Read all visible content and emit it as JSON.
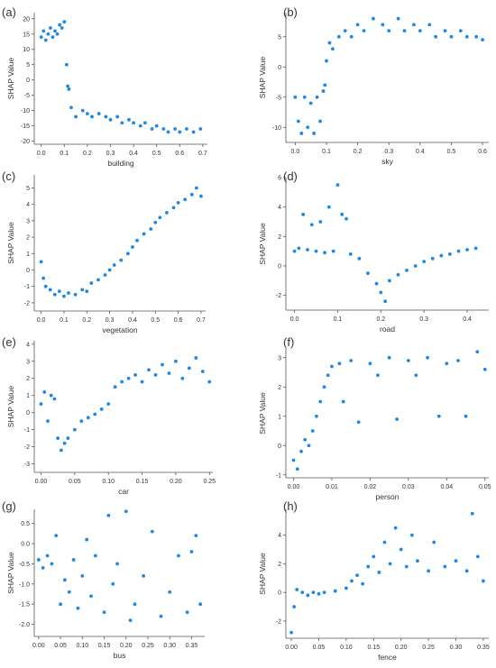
{
  "colors": {
    "point": "#1e88e5",
    "axis": "#555555",
    "text": "#333333"
  },
  "chart_data": [
    {
      "panel": "(a)",
      "type": "scatter",
      "xlabel": "building",
      "ylabel": "SHAP Value",
      "xlim": [
        -0.03,
        0.72
      ],
      "ylim": [
        -21,
        22
      ],
      "xticks": [
        0.0,
        0.1,
        0.2,
        0.3,
        0.4,
        0.5,
        0.6,
        0.7
      ],
      "xtick_labels": [
        "0.0",
        "0.1",
        "0.2",
        "0.3",
        "0.4",
        "0.5",
        "0.6",
        "0.7"
      ],
      "yticks": [
        -20,
        -15,
        -10,
        -5,
        0,
        5,
        10,
        15,
        20
      ],
      "ytick_labels": [
        "-20",
        "-15",
        "-10",
        "-5",
        "0",
        "5",
        "10",
        "15",
        "20"
      ],
      "points": [
        [
          0.0,
          14
        ],
        [
          0.01,
          16
        ],
        [
          0.02,
          13
        ],
        [
          0.03,
          15
        ],
        [
          0.04,
          17
        ],
        [
          0.05,
          14
        ],
        [
          0.06,
          16
        ],
        [
          0.07,
          15
        ],
        [
          0.08,
          18
        ],
        [
          0.09,
          17
        ],
        [
          0.1,
          19
        ],
        [
          0.11,
          5
        ],
        [
          0.115,
          -2
        ],
        [
          0.12,
          -3
        ],
        [
          0.13,
          -9
        ],
        [
          0.15,
          -12
        ],
        [
          0.18,
          -10
        ],
        [
          0.2,
          -11
        ],
        [
          0.22,
          -12
        ],
        [
          0.25,
          -11
        ],
        [
          0.28,
          -12
        ],
        [
          0.3,
          -13
        ],
        [
          0.33,
          -12
        ],
        [
          0.35,
          -14
        ],
        [
          0.38,
          -13
        ],
        [
          0.4,
          -14
        ],
        [
          0.43,
          -15
        ],
        [
          0.45,
          -14
        ],
        [
          0.48,
          -16
        ],
        [
          0.5,
          -15
        ],
        [
          0.53,
          -16
        ],
        [
          0.55,
          -17
        ],
        [
          0.58,
          -16
        ],
        [
          0.6,
          -17
        ],
        [
          0.63,
          -16
        ],
        [
          0.66,
          -17
        ],
        [
          0.69,
          -16
        ]
      ]
    },
    {
      "panel": "(b)",
      "type": "scatter",
      "xlabel": "sky",
      "ylabel": "SHAP Value",
      "xlim": [
        -0.03,
        0.62
      ],
      "ylim": [
        -12.5,
        9
      ],
      "xticks": [
        0.0,
        0.1,
        0.2,
        0.3,
        0.4,
        0.5,
        0.6
      ],
      "xtick_labels": [
        "0.0",
        "0.1",
        "0.2",
        "0.3",
        "0.4",
        "0.5",
        "0.6"
      ],
      "yticks": [
        -10,
        -5,
        0,
        5
      ],
      "ytick_labels": [
        "-10",
        "-5",
        "0",
        "5"
      ],
      "points": [
        [
          0.0,
          -5
        ],
        [
          0.01,
          -9
        ],
        [
          0.02,
          -11
        ],
        [
          0.03,
          -5
        ],
        [
          0.04,
          -10
        ],
        [
          0.05,
          -6
        ],
        [
          0.06,
          -11
        ],
        [
          0.07,
          -5
        ],
        [
          0.08,
          -9
        ],
        [
          0.09,
          -4
        ],
        [
          0.095,
          -3
        ],
        [
          0.1,
          1
        ],
        [
          0.11,
          4
        ],
        [
          0.12,
          3
        ],
        [
          0.14,
          5
        ],
        [
          0.16,
          6
        ],
        [
          0.18,
          5
        ],
        [
          0.2,
          7
        ],
        [
          0.22,
          6
        ],
        [
          0.25,
          8
        ],
        [
          0.28,
          7
        ],
        [
          0.3,
          6
        ],
        [
          0.33,
          8
        ],
        [
          0.35,
          6
        ],
        [
          0.38,
          7
        ],
        [
          0.4,
          6
        ],
        [
          0.43,
          7
        ],
        [
          0.45,
          5
        ],
        [
          0.48,
          6
        ],
        [
          0.5,
          5
        ],
        [
          0.53,
          6
        ],
        [
          0.55,
          5
        ],
        [
          0.58,
          5
        ],
        [
          0.6,
          4.5
        ]
      ]
    },
    {
      "panel": "(c)",
      "type": "scatter",
      "xlabel": "vegetation",
      "ylabel": "SHAP Value",
      "xlim": [
        -0.03,
        0.72
      ],
      "ylim": [
        -2.5,
        5.8
      ],
      "xticks": [
        0.0,
        0.1,
        0.2,
        0.3,
        0.4,
        0.5,
        0.6,
        0.7
      ],
      "xtick_labels": [
        "0.0",
        "0.1",
        "0.2",
        "0.3",
        "0.4",
        "0.5",
        "0.6",
        "0.7"
      ],
      "yticks": [
        -2,
        -1,
        0,
        1,
        2,
        3,
        4,
        5
      ],
      "ytick_labels": [
        "-2",
        "-1",
        "0",
        "1",
        "2",
        "3",
        "4",
        "5"
      ],
      "points": [
        [
          0.0,
          0.5
        ],
        [
          0.01,
          -0.5
        ],
        [
          0.02,
          -1
        ],
        [
          0.04,
          -1.2
        ],
        [
          0.06,
          -1.5
        ],
        [
          0.08,
          -1.3
        ],
        [
          0.1,
          -1.6
        ],
        [
          0.12,
          -1.4
        ],
        [
          0.15,
          -1.5
        ],
        [
          0.18,
          -1.2
        ],
        [
          0.2,
          -1.3
        ],
        [
          0.22,
          -0.8
        ],
        [
          0.25,
          -0.6
        ],
        [
          0.28,
          -0.3
        ],
        [
          0.3,
          0.0
        ],
        [
          0.32,
          0.3
        ],
        [
          0.35,
          0.6
        ],
        [
          0.38,
          1.0
        ],
        [
          0.4,
          1.4
        ],
        [
          0.42,
          1.8
        ],
        [
          0.45,
          2.2
        ],
        [
          0.48,
          2.5
        ],
        [
          0.5,
          2.9
        ],
        [
          0.52,
          3.2
        ],
        [
          0.55,
          3.5
        ],
        [
          0.58,
          3.8
        ],
        [
          0.6,
          4.1
        ],
        [
          0.63,
          4.3
        ],
        [
          0.66,
          4.6
        ],
        [
          0.68,
          5.0
        ],
        [
          0.7,
          4.5
        ]
      ]
    },
    {
      "panel": "(d)",
      "type": "scatter",
      "xlabel": "road",
      "ylabel": "SHAP Value",
      "xlim": [
        -0.02,
        0.45
      ],
      "ylim": [
        -3,
        6
      ],
      "xticks": [
        0.0,
        0.1,
        0.2,
        0.3,
        0.4
      ],
      "xtick_labels": [
        "0.0",
        "0.1",
        "0.2",
        "0.3",
        "0.4"
      ],
      "yticks": [
        -2,
        0,
        2,
        4,
        6
      ],
      "ytick_labels": [
        "-2",
        "0",
        "2",
        "4",
        "6"
      ],
      "points": [
        [
          0.0,
          1
        ],
        [
          0.01,
          1.2
        ],
        [
          0.02,
          3.5
        ],
        [
          0.03,
          1.1
        ],
        [
          0.04,
          2.8
        ],
        [
          0.05,
          1.0
        ],
        [
          0.06,
          3.0
        ],
        [
          0.07,
          0.9
        ],
        [
          0.08,
          4.0
        ],
        [
          0.09,
          1.0
        ],
        [
          0.1,
          5.5
        ],
        [
          0.11,
          3.5
        ],
        [
          0.12,
          3.2
        ],
        [
          0.13,
          0.8
        ],
        [
          0.15,
          0.5
        ],
        [
          0.17,
          -0.5
        ],
        [
          0.19,
          -1.2
        ],
        [
          0.2,
          -1.8
        ],
        [
          0.21,
          -2.4
        ],
        [
          0.22,
          -1.0
        ],
        [
          0.24,
          -0.6
        ],
        [
          0.26,
          -0.3
        ],
        [
          0.28,
          0.0
        ],
        [
          0.3,
          0.3
        ],
        [
          0.32,
          0.5
        ],
        [
          0.34,
          0.7
        ],
        [
          0.36,
          0.8
        ],
        [
          0.38,
          1.0
        ],
        [
          0.4,
          1.1
        ],
        [
          0.42,
          1.2
        ]
      ]
    },
    {
      "panel": "(e)",
      "type": "scatter",
      "xlabel": "car",
      "ylabel": "SHAP Value",
      "xlim": [
        -0.01,
        0.255
      ],
      "ylim": [
        -3.5,
        4.2
      ],
      "xticks": [
        0.0,
        0.05,
        0.1,
        0.15,
        0.2,
        0.25
      ],
      "xtick_labels": [
        "0.00",
        "0.05",
        "0.10",
        "0.15",
        "0.20",
        "0.25"
      ],
      "yticks": [
        -3,
        -2,
        -1,
        0,
        1,
        2,
        3,
        4
      ],
      "ytick_labels": [
        "-3",
        "-2",
        "-1",
        "0",
        "1",
        "2",
        "3",
        "4"
      ],
      "points": [
        [
          0.0,
          0.5
        ],
        [
          0.005,
          1.2
        ],
        [
          0.01,
          -0.5
        ],
        [
          0.015,
          1.0
        ],
        [
          0.02,
          0.8
        ],
        [
          0.025,
          -1.5
        ],
        [
          0.03,
          -2.2
        ],
        [
          0.035,
          -1.8
        ],
        [
          0.04,
          -1.5
        ],
        [
          0.05,
          -1.0
        ],
        [
          0.06,
          -0.5
        ],
        [
          0.07,
          -0.3
        ],
        [
          0.08,
          -0.1
        ],
        [
          0.09,
          0.2
        ],
        [
          0.1,
          0.5
        ],
        [
          0.11,
          1.5
        ],
        [
          0.12,
          1.8
        ],
        [
          0.13,
          2.0
        ],
        [
          0.14,
          2.2
        ],
        [
          0.15,
          1.8
        ],
        [
          0.16,
          2.5
        ],
        [
          0.17,
          2.2
        ],
        [
          0.18,
          2.8
        ],
        [
          0.19,
          2.3
        ],
        [
          0.2,
          3.0
        ],
        [
          0.21,
          2.0
        ],
        [
          0.22,
          2.6
        ],
        [
          0.23,
          3.2
        ],
        [
          0.24,
          2.4
        ],
        [
          0.25,
          1.8
        ]
      ]
    },
    {
      "panel": "(f)",
      "type": "scatter",
      "xlabel": "person",
      "ylabel": "SHAP Value",
      "xlim": [
        -0.002,
        0.051
      ],
      "ylim": [
        -1.1,
        3.3
      ],
      "xticks": [
        0.0,
        0.01,
        0.02,
        0.03,
        0.04,
        0.05
      ],
      "xtick_labels": [
        "0.00",
        "0.01",
        "0.02",
        "0.03",
        "0.04",
        "0.05"
      ],
      "yticks": [
        -1,
        0,
        1,
        2,
        3
      ],
      "ytick_labels": [
        "-1",
        "0",
        "1",
        "2",
        "3"
      ],
      "points": [
        [
          0.0,
          -0.5
        ],
        [
          0.001,
          -0.8
        ],
        [
          0.002,
          -0.2
        ],
        [
          0.003,
          0.2
        ],
        [
          0.004,
          0.0
        ],
        [
          0.005,
          0.5
        ],
        [
          0.006,
          1.0
        ],
        [
          0.007,
          1.5
        ],
        [
          0.008,
          2.0
        ],
        [
          0.009,
          2.4
        ],
        [
          0.01,
          2.7
        ],
        [
          0.012,
          2.8
        ],
        [
          0.013,
          1.5
        ],
        [
          0.015,
          2.9
        ],
        [
          0.017,
          0.8
        ],
        [
          0.02,
          2.8
        ],
        [
          0.022,
          2.4
        ],
        [
          0.025,
          3.0
        ],
        [
          0.027,
          0.9
        ],
        [
          0.03,
          2.9
        ],
        [
          0.032,
          2.4
        ],
        [
          0.035,
          3.0
        ],
        [
          0.038,
          1.0
        ],
        [
          0.04,
          2.8
        ],
        [
          0.043,
          2.9
        ],
        [
          0.045,
          1.0
        ],
        [
          0.048,
          3.2
        ],
        [
          0.05,
          2.6
        ]
      ]
    },
    {
      "panel": "(g)",
      "type": "scatter",
      "xlabel": "bus",
      "ylabel": "SHAP Value",
      "xlim": [
        -0.01,
        0.38
      ],
      "ylim": [
        -2.3,
        0.85
      ],
      "xticks": [
        0.0,
        0.05,
        0.1,
        0.15,
        0.2,
        0.25,
        0.3,
        0.35
      ],
      "xtick_labels": [
        "0.00",
        "0.05",
        "0.10",
        "0.15",
        "0.20",
        "0.25",
        "0.30",
        "0.35"
      ],
      "yticks": [
        -2.0,
        -1.5,
        -1.0,
        -0.5,
        0.0,
        0.5
      ],
      "ytick_labels": [
        "-2.0",
        "-1.5",
        "-1.0",
        "-0.5",
        "0.0",
        "0.5"
      ],
      "points": [
        [
          0.0,
          -0.4
        ],
        [
          0.01,
          -0.6
        ],
        [
          0.02,
          -0.3
        ],
        [
          0.03,
          -0.5
        ],
        [
          0.04,
          0.2
        ],
        [
          0.05,
          -1.5
        ],
        [
          0.06,
          -0.9
        ],
        [
          0.07,
          -1.2
        ],
        [
          0.08,
          -0.4
        ],
        [
          0.09,
          -1.6
        ],
        [
          0.1,
          -0.8
        ],
        [
          0.11,
          0.1
        ],
        [
          0.12,
          -1.3
        ],
        [
          0.13,
          -0.3
        ],
        [
          0.15,
          -1.7
        ],
        [
          0.16,
          0.7
        ],
        [
          0.17,
          -1.0
        ],
        [
          0.18,
          -0.5
        ],
        [
          0.2,
          0.8
        ],
        [
          0.21,
          -1.9
        ],
        [
          0.22,
          -1.5
        ],
        [
          0.24,
          -0.8
        ],
        [
          0.26,
          0.3
        ],
        [
          0.28,
          -1.8
        ],
        [
          0.3,
          -1.2
        ],
        [
          0.32,
          -0.3
        ],
        [
          0.34,
          -1.7
        ],
        [
          0.35,
          -0.2
        ],
        [
          0.36,
          0.2
        ],
        [
          0.37,
          -1.5
        ]
      ]
    },
    {
      "panel": "(h)",
      "type": "scatter",
      "xlabel": "fence",
      "ylabel": "SHAP Value",
      "xlim": [
        -0.01,
        0.36
      ],
      "ylim": [
        -3.2,
        5.8
      ],
      "xticks": [
        0.0,
        0.05,
        0.1,
        0.15,
        0.2,
        0.25,
        0.3,
        0.35
      ],
      "xtick_labels": [
        "0.00",
        "0.05",
        "0.10",
        "0.15",
        "0.20",
        "0.25",
        "0.30",
        "0.35"
      ],
      "yticks": [
        -2,
        0,
        2,
        4
      ],
      "ytick_labels": [
        "-2",
        "0",
        "2",
        "4"
      ],
      "points": [
        [
          0.0,
          -2.8
        ],
        [
          0.005,
          -1.0
        ],
        [
          0.01,
          0.2
        ],
        [
          0.02,
          0.0
        ],
        [
          0.03,
          -0.2
        ],
        [
          0.04,
          0.0
        ],
        [
          0.05,
          -0.1
        ],
        [
          0.06,
          0.0
        ],
        [
          0.08,
          0.1
        ],
        [
          0.1,
          0.3
        ],
        [
          0.11,
          0.8
        ],
        [
          0.12,
          1.2
        ],
        [
          0.13,
          0.6
        ],
        [
          0.14,
          1.8
        ],
        [
          0.15,
          2.5
        ],
        [
          0.16,
          1.4
        ],
        [
          0.17,
          3.5
        ],
        [
          0.18,
          2.0
        ],
        [
          0.19,
          4.5
        ],
        [
          0.2,
          3.0
        ],
        [
          0.21,
          1.8
        ],
        [
          0.22,
          4.0
        ],
        [
          0.23,
          2.2
        ],
        [
          0.25,
          1.5
        ],
        [
          0.26,
          3.5
        ],
        [
          0.28,
          1.8
        ],
        [
          0.3,
          2.2
        ],
        [
          0.32,
          1.5
        ],
        [
          0.33,
          5.5
        ],
        [
          0.34,
          2.5
        ],
        [
          0.35,
          0.8
        ]
      ]
    }
  ]
}
